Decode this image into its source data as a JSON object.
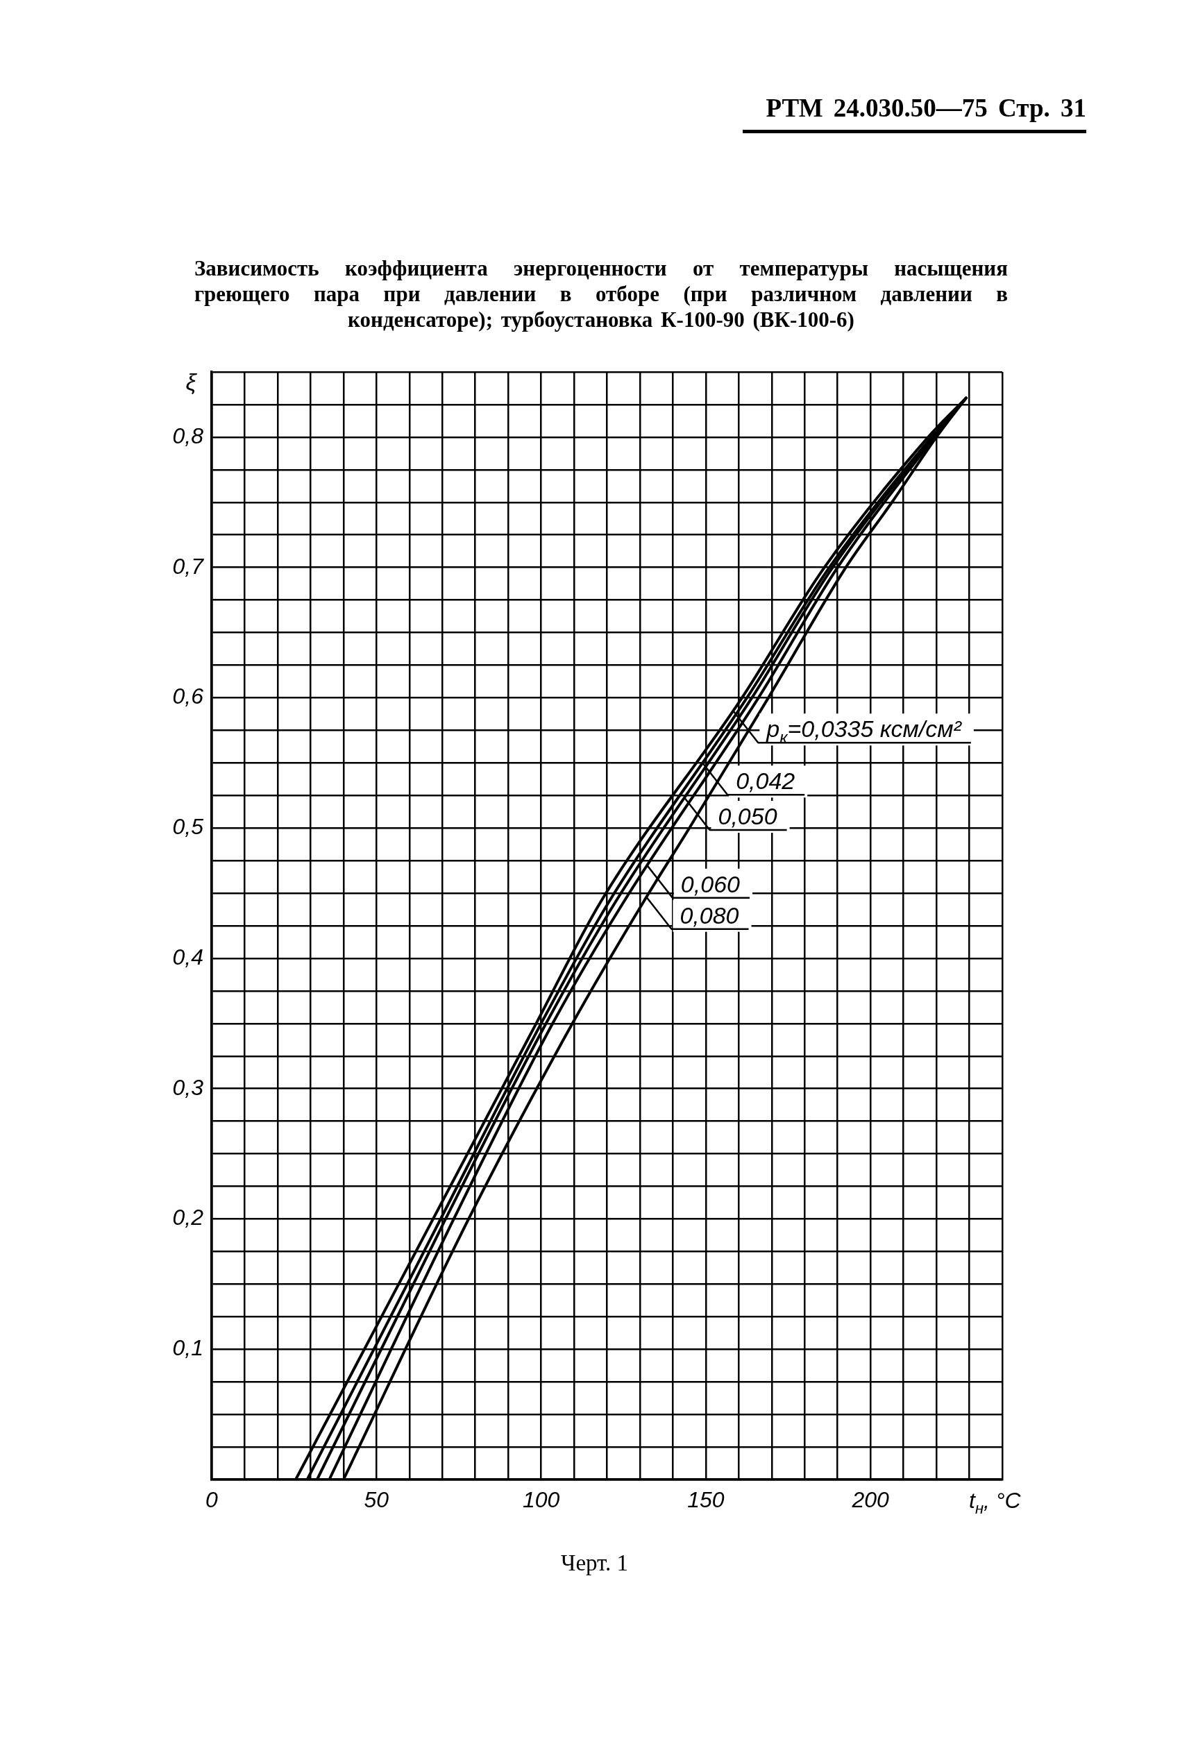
{
  "chart_data": {
    "type": "line",
    "title": "Зависимость коэффициента энергоценности от температуры насыщения греющего пара при давлении в отборе (при различном давлении в конденсаторе); турбоустановка К-100-90 (ВК-100-6)",
    "xlabel": "t$_{н}$, °C",
    "ylabel": "ξ",
    "xlim": [
      0,
      240
    ],
    "ylim": [
      0,
      0.85
    ],
    "xticks": [
      0,
      {
        "value": 10,
        "label": null
      },
      {
        "value": 20,
        "label": null
      },
      {
        "value": 30,
        "label": null
      },
      {
        "value": 40,
        "label": null
      },
      50,
      {
        "value": 60,
        "label": null
      },
      {
        "value": 70,
        "label": null
      },
      {
        "value": 80,
        "label": null
      },
      {
        "value": 90,
        "label": null
      },
      100,
      {
        "value": 110,
        "label": null
      },
      {
        "value": 120,
        "label": null
      },
      {
        "value": 130,
        "label": null
      },
      {
        "value": 140,
        "label": null
      },
      150,
      {
        "value": 160,
        "label": null
      },
      {
        "value": 170,
        "label": null
      },
      {
        "value": 180,
        "label": null
      },
      {
        "value": 190,
        "label": null
      },
      200,
      {
        "value": 210,
        "label": null
      },
      {
        "value": 220,
        "label": null
      },
      {
        "value": 230,
        "label": null
      },
      {
        "value": 240,
        "label": null
      }
    ],
    "yticks": [
      {
        "value": 0,
        "label": null
      },
      {
        "value": 0.025,
        "label": null
      },
      {
        "value": 0.05,
        "label": null
      },
      {
        "value": 0.075,
        "label": null
      },
      {
        "value": 0.1,
        "label": "0,1"
      },
      {
        "value": 0.125,
        "label": null
      },
      {
        "value": 0.15,
        "label": null
      },
      {
        "value": 0.175,
        "label": null
      },
      {
        "value": 0.2,
        "label": "0,2"
      },
      {
        "value": 0.225,
        "label": null
      },
      {
        "value": 0.25,
        "label": null
      },
      {
        "value": 0.275,
        "label": null
      },
      {
        "value": 0.3,
        "label": "0,3"
      },
      {
        "value": 0.325,
        "label": null
      },
      {
        "value": 0.35,
        "label": null
      },
      {
        "value": 0.375,
        "label": null
      },
      {
        "value": 0.4,
        "label": "0,4"
      },
      {
        "value": 0.425,
        "label": null
      },
      {
        "value": 0.45,
        "label": null
      },
      {
        "value": 0.475,
        "label": null
      },
      {
        "value": 0.5,
        "label": "0,5"
      },
      {
        "value": 0.525,
        "label": null
      },
      {
        "value": 0.55,
        "label": null
      },
      {
        "value": 0.575,
        "label": null
      },
      {
        "value": 0.6,
        "label": "0,6"
      },
      {
        "value": 0.625,
        "label": null
      },
      {
        "value": 0.65,
        "label": null
      },
      {
        "value": 0.675,
        "label": null
      },
      {
        "value": 0.7,
        "label": "0,7"
      },
      {
        "value": 0.725,
        "label": null
      },
      {
        "value": 0.75,
        "label": null
      },
      {
        "value": 0.775,
        "label": null
      },
      {
        "value": 0.8,
        "label": "0,8"
      },
      {
        "value": 0.825,
        "label": null
      },
      {
        "value": 0.85,
        "label": null
      }
    ],
    "grid": true,
    "marker": "none",
    "line_style": "solid",
    "series": [
      {
        "color": "#000000",
        "x": [
          25.5,
          98.5,
          118,
          161,
          186,
          217.5,
          229
        ],
        "values": [
          0,
          0.35,
          0.443,
          0.6,
          0.7,
          0.8,
          0.83
        ]
      },
      {
        "color": "#000000",
        "x": [
          29,
          69.5,
          100,
          120.5,
          162.5,
          187.5,
          218.5,
          229
        ],
        "values": [
          0,
          0.2,
          0.35,
          0.443,
          0.6,
          0.7,
          0.8,
          0.83
        ]
      },
      {
        "color": "#000000",
        "x": [
          32,
          71,
          101.5,
          122.5,
          164,
          188.5,
          219,
          229
        ],
        "values": [
          0,
          0.2,
          0.35,
          0.443,
          0.6,
          0.7,
          0.8,
          0.83
        ]
      },
      {
        "color": "#000000",
        "x": [
          35.7,
          73.5,
          103.5,
          125,
          166,
          190,
          219.5,
          229
        ],
        "values": [
          0,
          0.2,
          0.35,
          0.443,
          0.6,
          0.7,
          0.8,
          0.83
        ]
      },
      {
        "color": "#000000",
        "x": [
          40,
          78,
          109.5,
          131,
          145,
          169,
          192.5,
          206.5,
          220,
          229
        ],
        "values": [
          0,
          0.2,
          0.35,
          0.443,
          0.5,
          0.6,
          0.7,
          0.75,
          0.8,
          0.83
        ]
      }
    ],
    "annotations": [
      "РТМ 24.030.50—75 Стр. 31",
      "Черт. 1",
      {
        "text": "p$_{к}$=0,0335 ксм/см²",
        "x": 158.3,
        "y": 0.59
      },
      {
        "text": "0,042",
        "x": 149,
        "y": 0.55
      },
      {
        "text": "0,050",
        "x": 143.6,
        "y": 0.523
      },
      {
        "text": "0,060",
        "x": 132.3,
        "y": 0.471
      },
      {
        "text": "0,080",
        "x": 132,
        "y": 0.447
      }
    ]
  }
}
